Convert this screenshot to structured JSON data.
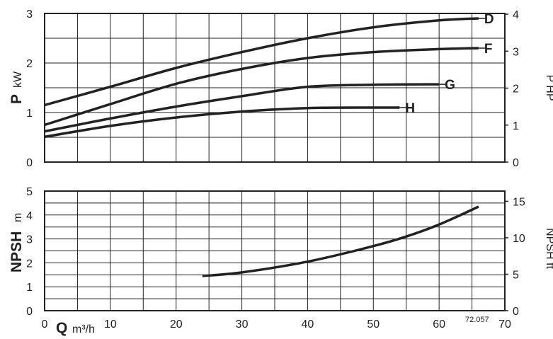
{
  "chart_data": [
    {
      "type": "line",
      "x": {
        "label_letter": "",
        "unit": "",
        "range": [
          0,
          70
        ],
        "ticks": [
          0,
          10,
          20,
          30,
          40,
          50,
          60,
          70
        ]
      },
      "y": {
        "label_letter": "P",
        "unit": "kW",
        "range": [
          0,
          3
        ],
        "ticks": [
          0,
          1,
          2,
          3
        ]
      },
      "y2": {
        "label": "P HP",
        "range": [
          0,
          4.02
        ],
        "ticks": [
          0,
          1,
          2,
          3,
          4
        ]
      },
      "grid": true,
      "series": [
        {
          "name": "D",
          "points": [
            [
              0,
              1.15
            ],
            [
              10,
              1.52
            ],
            [
              20,
              1.9
            ],
            [
              30,
              2.22
            ],
            [
              40,
              2.5
            ],
            [
              50,
              2.72
            ],
            [
              60,
              2.86
            ],
            [
              66,
              2.9
            ]
          ]
        },
        {
          "name": "F",
          "points": [
            [
              0,
              0.75
            ],
            [
              10,
              1.17
            ],
            [
              20,
              1.58
            ],
            [
              30,
              1.88
            ],
            [
              40,
              2.1
            ],
            [
              50,
              2.22
            ],
            [
              60,
              2.28
            ],
            [
              66,
              2.3
            ]
          ]
        },
        {
          "name": "G",
          "points": [
            [
              0,
              0.62
            ],
            [
              10,
              0.88
            ],
            [
              20,
              1.12
            ],
            [
              30,
              1.33
            ],
            [
              40,
              1.52
            ],
            [
              50,
              1.56
            ],
            [
              60,
              1.57
            ]
          ]
        },
        {
          "name": "H",
          "points": [
            [
              0,
              0.51
            ],
            [
              10,
              0.73
            ],
            [
              20,
              0.9
            ],
            [
              30,
              1.02
            ],
            [
              40,
              1.09
            ],
            [
              50,
              1.1
            ],
            [
              54,
              1.1
            ]
          ]
        }
      ]
    },
    {
      "type": "line",
      "x": {
        "label_letter": "Q",
        "unit": "m³/h",
        "range": [
          0,
          70
        ],
        "ticks": [
          0,
          10,
          20,
          30,
          40,
          50,
          60,
          70
        ]
      },
      "y": {
        "label_letter": "NPSH",
        "unit": "m",
        "range": [
          0,
          5
        ],
        "ticks": [
          0,
          1,
          2,
          3,
          4,
          5
        ]
      },
      "y2": {
        "label": "NPSH ft",
        "range": [
          0,
          16.4
        ],
        "ticks": [
          0,
          5,
          10,
          15
        ]
      },
      "grid": true,
      "series": [
        {
          "name": "NPSH",
          "points": [
            [
              24,
              1.45
            ],
            [
              30,
              1.6
            ],
            [
              40,
              2.05
            ],
            [
              50,
              2.7
            ],
            [
              55,
              3.1
            ],
            [
              60,
              3.6
            ],
            [
              66,
              4.35
            ]
          ]
        }
      ]
    }
  ],
  "figure_code": "72.057"
}
